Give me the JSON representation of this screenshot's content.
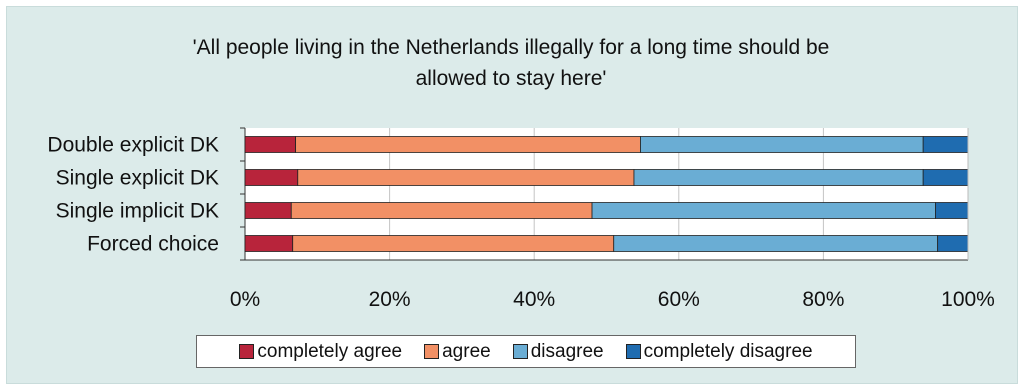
{
  "chart_data": {
    "type": "bar",
    "orientation": "horizontal",
    "stacked": true,
    "normalized": true,
    "title_lines": [
      "'All people living in the Netherlands illegally for a long time should be",
      "allowed to stay here'"
    ],
    "categories": [
      "Double explicit DK",
      "Single explicit DK",
      "Single implicit DK",
      "Forced choice"
    ],
    "series": [
      {
        "name": "completely agree",
        "color": "#b8243b",
        "values": [
          7,
          7.3,
          6.4,
          6.6
        ]
      },
      {
        "name": "agree",
        "color": "#f29065",
        "values": [
          47.7,
          46.5,
          41.6,
          44.4
        ]
      },
      {
        "name": "disagree",
        "color": "#6aadd4",
        "values": [
          39.1,
          40.0,
          47.5,
          44.8
        ]
      },
      {
        "name": "completely disagree",
        "color": "#1f6cb0",
        "values": [
          6.2,
          6.2,
          4.5,
          4.2
        ]
      }
    ],
    "x_ticks": [
      "0%",
      "20%",
      "40%",
      "60%",
      "80%",
      "100%"
    ],
    "xlim": [
      0,
      100
    ],
    "grid": true,
    "legend_position": "bottom"
  }
}
